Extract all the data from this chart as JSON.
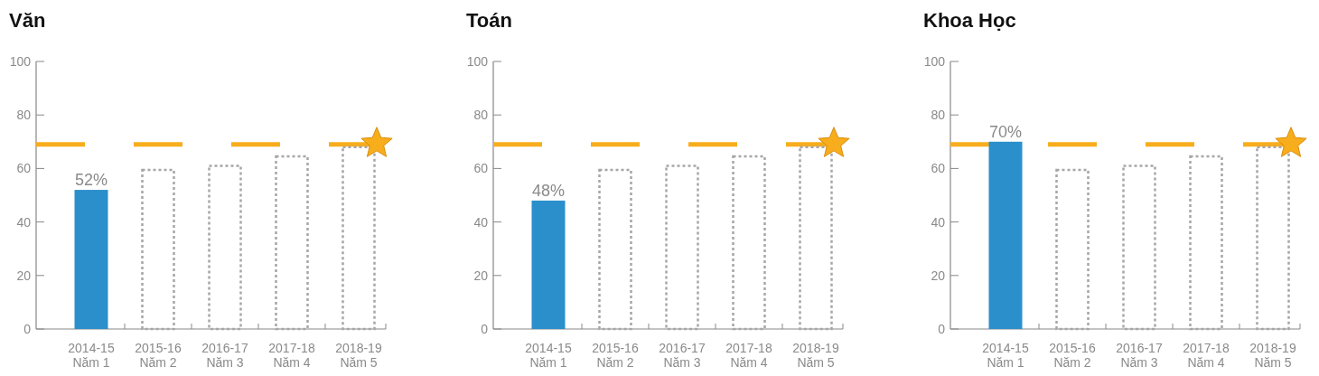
{
  "chart_data": [
    {
      "type": "bar",
      "title": "Văn",
      "categories": [
        "2014-15\nNăm 1",
        "2015-16\nNăm 2",
        "2016-17\nNăm 3",
        "2017-18\nNăm 4",
        "2018-19\nNăm 5"
      ],
      "ylim": [
        0,
        100
      ],
      "yticks": [
        0,
        20,
        40,
        60,
        80,
        100
      ],
      "series": [
        {
          "color": "#2a8fca",
          "values": [
            52,
            null,
            null,
            null,
            null
          ],
          "value_labels": [
            "52%",
            null,
            null,
            null,
            null
          ]
        },
        {
          "color": "#a6a6a6",
          "line_style": "dotted",
          "values": [
            null,
            59.5,
            61,
            64.5,
            68
          ]
        }
      ],
      "ref_lines": [
        {
          "axis": "y",
          "value": 69,
          "color": "#f7ad1c",
          "line_style": "dashed"
        }
      ]
    },
    {
      "type": "bar",
      "title": "Toán",
      "categories": [
        "2014-15\nNăm 1",
        "2015-16\nNăm 2",
        "2016-17\nNăm 3",
        "2017-18\nNăm 4",
        "2018-19\nNăm 5"
      ],
      "ylim": [
        0,
        100
      ],
      "yticks": [
        0,
        20,
        40,
        60,
        80,
        100
      ],
      "series": [
        {
          "color": "#2a8fca",
          "values": [
            48,
            null,
            null,
            null,
            null
          ],
          "value_labels": [
            "48%",
            null,
            null,
            null,
            null
          ]
        },
        {
          "color": "#a6a6a6",
          "line_style": "dotted",
          "values": [
            null,
            59.5,
            61,
            64.5,
            68
          ]
        }
      ],
      "ref_lines": [
        {
          "axis": "y",
          "value": 69,
          "color": "#f7ad1c",
          "line_style": "dashed"
        }
      ]
    },
    {
      "type": "bar",
      "title": "Khoa Học",
      "categories": [
        "2014-15\nNăm 1",
        "2015-16\nNăm 2",
        "2016-17\nNăm 3",
        "2017-18\nNăm 4",
        "2018-19\nNăm 5"
      ],
      "ylim": [
        0,
        100
      ],
      "yticks": [
        0,
        20,
        40,
        60,
        80,
        100
      ],
      "series": [
        {
          "color": "#2a8fca",
          "values": [
            70,
            null,
            null,
            null,
            null
          ],
          "value_labels": [
            "70%",
            null,
            null,
            null,
            null
          ]
        },
        {
          "color": "#a6a6a6",
          "line_style": "dotted",
          "values": [
            null,
            59.5,
            61,
            64.5,
            68
          ]
        }
      ],
      "ref_lines": [
        {
          "axis": "y",
          "value": 69,
          "color": "#f7ad1c",
          "line_style": "dashed"
        }
      ]
    }
  ]
}
